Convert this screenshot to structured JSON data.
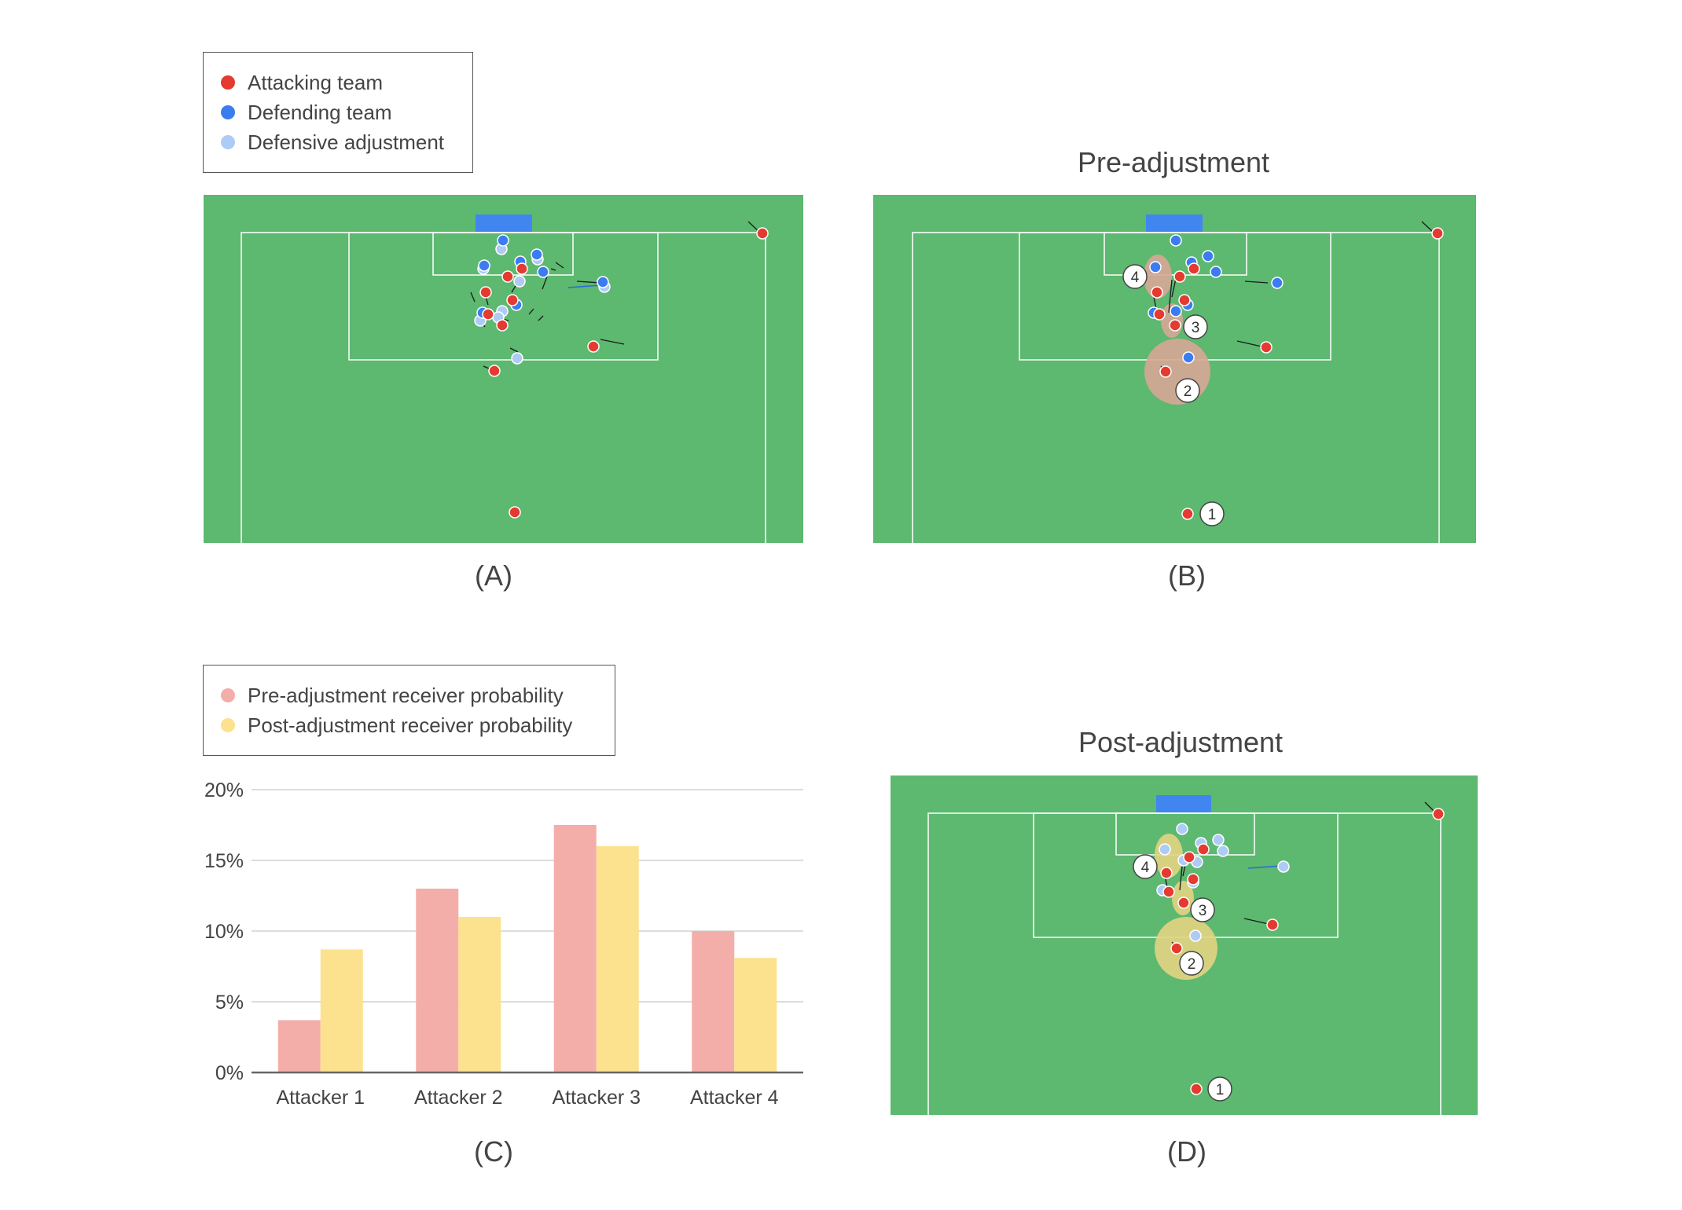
{
  "legend_top": {
    "items": [
      {
        "label": "Attacking team",
        "color": "#e53a2f"
      },
      {
        "label": "Defending team",
        "color": "#3b7cf0"
      },
      {
        "label": "Defensive adjustment",
        "color": "#aecbf5"
      }
    ]
  },
  "legend_bottom": {
    "items": [
      {
        "label": "Pre-adjustment receiver probability",
        "color": "#f4aeaa"
      },
      {
        "label": "Post-adjustment receiver probability",
        "color": "#fce18f"
      }
    ]
  },
  "panels": {
    "a": {
      "label": "(A)"
    },
    "b": {
      "label": "(B)",
      "title": "Pre-adjustment"
    },
    "c": {
      "label": "(C)"
    },
    "d": {
      "label": "(D)",
      "title": "Post-adjustment"
    }
  },
  "colors": {
    "pitch": "#5db870",
    "goal": "#4186f0",
    "attacker": "#e53a2f",
    "defender": "#3b7cf0",
    "adjusted": "#aecbf5",
    "pre_prob": "#f4aeaa",
    "post_prob": "#fce18f"
  },
  "player_markers": {
    "b": [
      "1",
      "2",
      "3",
      "4"
    ],
    "d": [
      "1",
      "2",
      "3",
      "4"
    ]
  },
  "chart_data": {
    "type": "bar",
    "categories": [
      "Attacker 1",
      "Attacker 2",
      "Attacker 3",
      "Attacker 4"
    ],
    "series": [
      {
        "name": "Pre-adjustment receiver probability",
        "values": [
          3.7,
          13.0,
          17.5,
          10.0
        ]
      },
      {
        "name": "Post-adjustment receiver probability",
        "values": [
          8.7,
          11.0,
          16.0,
          8.1
        ]
      }
    ],
    "yticks": [
      "0%",
      "5%",
      "10%",
      "15%",
      "20%"
    ],
    "ylim": [
      0,
      20
    ],
    "grid": true,
    "legend": "top-left"
  }
}
